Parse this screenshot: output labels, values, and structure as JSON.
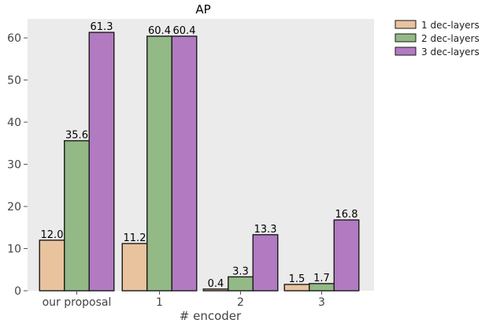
{
  "chart_data": {
    "type": "bar",
    "title": "AP",
    "xlabel": "# encoder",
    "ylabel": "",
    "categories": [
      "our proposal",
      "1",
      "2",
      "3"
    ],
    "series": [
      {
        "name": "1 dec-layers",
        "values": [
          12.0,
          11.2,
          0.4,
          1.5
        ],
        "color": "#e8c39e"
      },
      {
        "name": "2 dec-layers",
        "values": [
          35.6,
          60.4,
          3.3,
          1.7
        ],
        "color": "#92b986"
      },
      {
        "name": "3 dec-layers",
        "values": [
          61.3,
          60.4,
          13.3,
          16.8
        ],
        "color": "#b17ac1"
      }
    ],
    "data_labels": [
      [
        "12.0",
        "11.2",
        "0.4",
        "1.5"
      ],
      [
        "35.6",
        "60.4",
        "3.3",
        "1.7"
      ],
      [
        "61.3",
        "60.4",
        "13.3",
        "16.8"
      ]
    ],
    "ylim": [
      0,
      64.5
    ],
    "yticks": [
      0,
      10,
      20,
      30,
      40,
      50,
      60
    ],
    "ytick_labels": [
      "0",
      "10",
      "20",
      "30",
      "40",
      "50",
      "60"
    ],
    "grid": false,
    "legend_position": "outside top-right",
    "plot_background": "#ebebeb",
    "bar_edge_color": "#1a1a1a"
  }
}
